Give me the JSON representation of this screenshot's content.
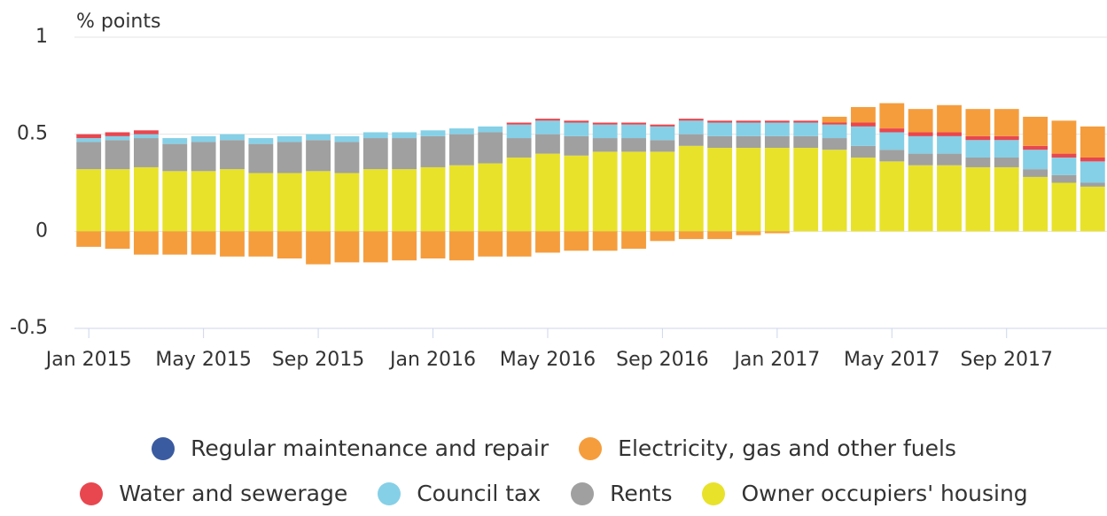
{
  "chart_data": {
    "type": "stacked-bar",
    "y_label": "% points",
    "categories": [
      "Jan 2015",
      null,
      null,
      null,
      "May 2015",
      null,
      null,
      null,
      "Sep 2015",
      null,
      null,
      null,
      "Jan 2016",
      null,
      null,
      null,
      "May 2016",
      null,
      null,
      null,
      "Sep 2016",
      null,
      null,
      null,
      "Jan 2017",
      null,
      null,
      null,
      "May 2017",
      null,
      null,
      null,
      "Sep 2017",
      null,
      null,
      null
    ],
    "ylim": [
      -0.5,
      1
    ],
    "yticks": [
      -0.5,
      0,
      0.5,
      1
    ],
    "grid": true,
    "series": [
      {
        "name": "Regular maintenance and repair",
        "color": "#3a5ba0",
        "values": [
          0,
          0,
          0,
          0,
          0,
          0,
          0,
          0,
          0,
          0,
          0,
          0,
          0,
          0,
          0,
          0,
          0,
          0,
          0,
          0,
          0,
          0,
          0,
          0,
          0,
          0,
          0,
          0,
          0,
          0,
          0,
          0,
          0,
          0,
          0,
          0
        ]
      },
      {
        "name": "Electricity, gas and other fuels",
        "color": "#f59d3d",
        "values": [
          -0.08,
          -0.09,
          -0.12,
          -0.12,
          -0.12,
          -0.13,
          -0.13,
          -0.14,
          -0.17,
          -0.16,
          -0.16,
          -0.15,
          -0.14,
          -0.15,
          -0.13,
          -0.13,
          -0.11,
          -0.1,
          -0.1,
          -0.09,
          -0.05,
          -0.04,
          -0.04,
          -0.02,
          -0.01,
          0,
          0.03,
          0.08,
          0.13,
          0.12,
          0.14,
          0.14,
          0.14,
          0.15,
          0.17,
          0.16
        ]
      },
      {
        "name": "Water and sewerage",
        "color": "#e8474f",
        "values": [
          0.02,
          0.02,
          0.02,
          0,
          0,
          0,
          0,
          0,
          0,
          0,
          0,
          0,
          0,
          0,
          0,
          0.01,
          0.01,
          0.01,
          0.01,
          0.01,
          0.01,
          0.01,
          0.01,
          0.01,
          0.01,
          0.01,
          0.01,
          0.02,
          0.02,
          0.02,
          0.02,
          0.02,
          0.02,
          0.02,
          0.02,
          0.02
        ]
      },
      {
        "name": "Council tax",
        "color": "#85d0e7",
        "values": [
          0.02,
          0.02,
          0.02,
          0.03,
          0.03,
          0.03,
          0.03,
          0.03,
          0.03,
          0.03,
          0.03,
          0.03,
          0.03,
          0.03,
          0.03,
          0.07,
          0.07,
          0.07,
          0.07,
          0.07,
          0.07,
          0.07,
          0.07,
          0.07,
          0.07,
          0.07,
          0.07,
          0.1,
          0.09,
          0.09,
          0.09,
          0.09,
          0.09,
          0.1,
          0.09,
          0.11
        ]
      },
      {
        "name": "Rents",
        "color": "#a0a0a0",
        "values": [
          0.14,
          0.15,
          0.15,
          0.14,
          0.15,
          0.15,
          0.15,
          0.16,
          0.16,
          0.16,
          0.16,
          0.16,
          0.16,
          0.16,
          0.16,
          0.1,
          0.1,
          0.1,
          0.07,
          0.07,
          0.06,
          0.06,
          0.06,
          0.06,
          0.06,
          0.06,
          0.06,
          0.06,
          0.06,
          0.06,
          0.06,
          0.05,
          0.05,
          0.04,
          0.04,
          0.02
        ]
      },
      {
        "name": "Owner occupiers' housing",
        "color": "#e8e22b",
        "values": [
          0.32,
          0.32,
          0.33,
          0.31,
          0.31,
          0.32,
          0.3,
          0.3,
          0.31,
          0.3,
          0.32,
          0.32,
          0.33,
          0.34,
          0.35,
          0.38,
          0.4,
          0.39,
          0.41,
          0.41,
          0.41,
          0.44,
          0.43,
          0.43,
          0.43,
          0.43,
          0.42,
          0.38,
          0.36,
          0.34,
          0.34,
          0.33,
          0.33,
          0.28,
          0.25,
          0.23
        ]
      }
    ]
  }
}
